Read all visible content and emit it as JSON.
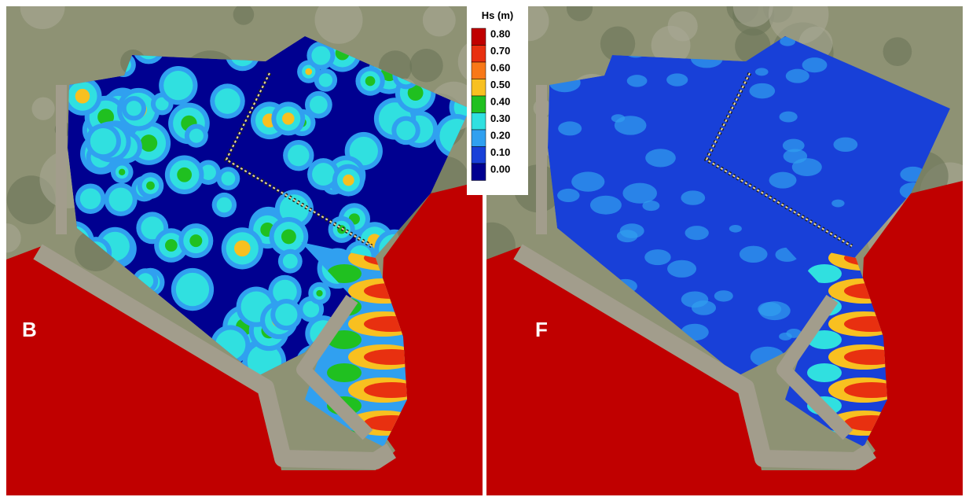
{
  "legend": {
    "title": "Hs (m)",
    "items": [
      {
        "label": "0.80",
        "color": "#c00000"
      },
      {
        "label": "0.70",
        "color": "#e83010"
      },
      {
        "label": "0.60",
        "color": "#f87818"
      },
      {
        "label": "0.50",
        "color": "#f8c020"
      },
      {
        "label": "0.40",
        "color": "#20c020"
      },
      {
        "label": "0.30",
        "color": "#30e0e0"
      },
      {
        "label": "0.20",
        "color": "#30a0f0"
      },
      {
        "label": "0.10",
        "color": "#1840d8"
      },
      {
        "label": "0.00",
        "color": "#000090"
      }
    ]
  },
  "panels": [
    {
      "label": "B"
    },
    {
      "label": "F"
    }
  ]
}
